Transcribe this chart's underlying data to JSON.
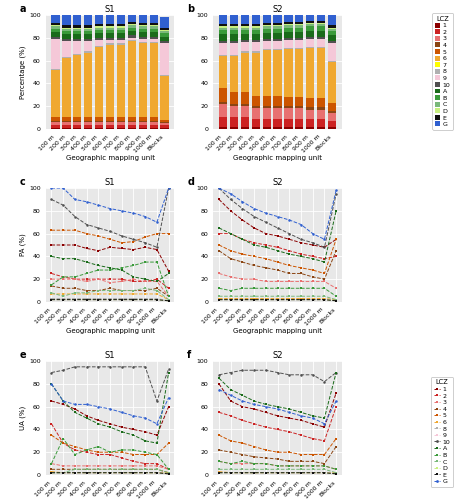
{
  "x_labels": [
    "100 m",
    "200 m",
    "300 m",
    "400 m",
    "500 m",
    "600 m",
    "700 m",
    "800 m",
    "900 m",
    "1000 m",
    "Blocks"
  ],
  "class_colors": {
    "1": "#8b0000",
    "2": "#cc2222",
    "3": "#e87070",
    "4": "#8b4513",
    "5": "#cc5500",
    "6": "#f0a830",
    "7": "#ffff00",
    "8": "#b0b0b0",
    "9": "#f5c8d8",
    "10": "#505050",
    "A": "#1a6b1a",
    "B": "#3a9a3a",
    "C": "#7ab87a",
    "D": "#c8f080",
    "E": "#101010",
    "G": "#3060d0"
  },
  "s1_bar": {
    "1": [
      1,
      1,
      1,
      1,
      1,
      1,
      1,
      1,
      1,
      1,
      1
    ],
    "2": [
      2,
      2,
      2,
      2,
      2,
      2,
      2,
      2,
      2,
      2,
      2
    ],
    "3": [
      3,
      3,
      3,
      3,
      3,
      3,
      3,
      3,
      3,
      3,
      2
    ],
    "4": [
      1,
      1,
      1,
      1,
      1,
      1,
      1,
      1,
      1,
      1,
      1
    ],
    "5": [
      3,
      3,
      3,
      3,
      3,
      3,
      3,
      3,
      3,
      3,
      2
    ],
    "6": [
      42,
      52,
      55,
      57,
      62,
      64,
      64,
      67,
      65,
      65,
      38
    ],
    "7": [
      0,
      0,
      0,
      0,
      0,
      0,
      0,
      0,
      0,
      0,
      0
    ],
    "8": [
      1,
      1,
      1,
      1,
      1,
      1,
      1,
      1,
      1,
      1,
      1
    ],
    "9": [
      26,
      14,
      11,
      9,
      5,
      3,
      3,
      2,
      3,
      3,
      28
    ],
    "10": [
      2,
      2,
      2,
      2,
      2,
      2,
      2,
      2,
      2,
      2,
      2
    ],
    "A": [
      4,
      4,
      4,
      4,
      4,
      4,
      4,
      4,
      4,
      4,
      4
    ],
    "B": [
      3,
      3,
      3,
      3,
      3,
      3,
      3,
      3,
      3,
      3,
      3
    ],
    "C": [
      2,
      2,
      2,
      2,
      2,
      2,
      2,
      2,
      2,
      2,
      2
    ],
    "D": [
      1,
      1,
      1,
      1,
      1,
      1,
      1,
      1,
      1,
      1,
      1
    ],
    "E": [
      2,
      2,
      2,
      2,
      2,
      2,
      2,
      2,
      2,
      2,
      2
    ],
    "G": [
      7,
      9,
      9,
      9,
      8,
      8,
      8,
      7,
      8,
      8,
      9
    ]
  },
  "s2_bar": {
    "1": [
      2,
      2,
      2,
      2,
      2,
      2,
      2,
      2,
      2,
      2,
      2
    ],
    "2": [
      8,
      8,
      8,
      7,
      7,
      7,
      7,
      7,
      7,
      7,
      5
    ],
    "3": [
      12,
      10,
      10,
      9,
      9,
      9,
      9,
      9,
      8,
      8,
      7
    ],
    "4": [
      2,
      2,
      2,
      2,
      2,
      2,
      2,
      2,
      2,
      2,
      2
    ],
    "5": [
      12,
      10,
      10,
      9,
      9,
      9,
      8,
      8,
      8,
      8,
      7
    ],
    "6": [
      28,
      32,
      35,
      38,
      40,
      40,
      42,
      42,
      44,
      44,
      36
    ],
    "7": [
      0,
      0,
      0,
      0,
      0,
      0,
      0,
      0,
      0,
      0,
      0
    ],
    "8": [
      1,
      1,
      1,
      1,
      1,
      1,
      1,
      1,
      1,
      1,
      1
    ],
    "9": [
      10,
      10,
      8,
      8,
      7,
      7,
      7,
      7,
      7,
      7,
      15
    ],
    "10": [
      2,
      2,
      2,
      2,
      2,
      2,
      2,
      2,
      2,
      2,
      2
    ],
    "A": [
      6,
      6,
      5,
      5,
      5,
      5,
      5,
      5,
      5,
      5,
      5
    ],
    "B": [
      4,
      4,
      4,
      4,
      4,
      4,
      4,
      4,
      4,
      4,
      4
    ],
    "C": [
      2,
      2,
      2,
      2,
      2,
      2,
      2,
      2,
      2,
      2,
      2
    ],
    "D": [
      1,
      1,
      1,
      1,
      1,
      1,
      1,
      1,
      1,
      1,
      1
    ],
    "E": [
      2,
      2,
      2,
      2,
      2,
      2,
      2,
      2,
      2,
      2,
      2
    ],
    "G": [
      8,
      8,
      8,
      8,
      7,
      7,
      7,
      7,
      7,
      7,
      9
    ]
  },
  "s1_pa": {
    "1": [
      50,
      50,
      50,
      47,
      45,
      48,
      47,
      46,
      48,
      46,
      27
    ],
    "2": [
      25,
      22,
      20,
      20,
      20,
      20,
      20,
      18,
      18,
      20,
      12
    ],
    "3": [
      20,
      20,
      20,
      18,
      20,
      17,
      18,
      20,
      18,
      18,
      5
    ],
    "4": [
      14,
      12,
      12,
      10,
      10,
      12,
      10,
      10,
      10,
      12,
      5
    ],
    "5": [
      63,
      63,
      63,
      60,
      58,
      55,
      52,
      53,
      57,
      60,
      60
    ],
    "6": [
      7,
      7,
      7,
      7,
      7,
      7,
      7,
      7,
      7,
      7,
      2
    ],
    "8": [
      3,
      3,
      3,
      3,
      3,
      3,
      3,
      3,
      3,
      3,
      1
    ],
    "9": [
      2,
      2,
      2,
      2,
      2,
      2,
      2,
      2,
      2,
      2,
      1
    ],
    "10": [
      90,
      85,
      75,
      68,
      65,
      62,
      58,
      55,
      52,
      48,
      100
    ],
    "A": [
      40,
      38,
      38,
      35,
      32,
      30,
      28,
      22,
      20,
      18,
      25
    ],
    "B": [
      15,
      22,
      22,
      25,
      28,
      28,
      30,
      32,
      35,
      35,
      5
    ],
    "C": [
      8,
      5,
      8,
      8,
      10,
      10,
      10,
      10,
      12,
      10,
      2
    ],
    "D": [
      2,
      2,
      2,
      2,
      2,
      2,
      2,
      2,
      2,
      2,
      1
    ],
    "E": [
      2,
      2,
      2,
      2,
      2,
      2,
      2,
      2,
      2,
      2,
      1
    ],
    "G": [
      100,
      100,
      90,
      88,
      85,
      82,
      80,
      78,
      75,
      70,
      100
    ]
  },
  "s2_pa": {
    "1": [
      90,
      80,
      72,
      65,
      60,
      58,
      55,
      52,
      50,
      48,
      55
    ],
    "2": [
      60,
      60,
      55,
      52,
      50,
      48,
      45,
      42,
      40,
      38,
      40
    ],
    "3": [
      25,
      22,
      20,
      20,
      18,
      18,
      18,
      18,
      18,
      18,
      12
    ],
    "4": [
      45,
      38,
      35,
      32,
      30,
      28,
      25,
      25,
      22,
      20,
      45
    ],
    "5": [
      50,
      45,
      42,
      40,
      38,
      35,
      32,
      30,
      28,
      25,
      55
    ],
    "6": [
      3,
      3,
      3,
      3,
      3,
      3,
      3,
      3,
      3,
      3,
      2
    ],
    "8": [
      2,
      2,
      2,
      2,
      2,
      2,
      2,
      2,
      2,
      2,
      1
    ],
    "9": [
      2,
      2,
      2,
      2,
      2,
      2,
      2,
      2,
      2,
      2,
      1
    ],
    "10": [
      100,
      90,
      82,
      75,
      70,
      65,
      60,
      55,
      52,
      48,
      95
    ],
    "A": [
      65,
      60,
      55,
      50,
      48,
      45,
      42,
      40,
      38,
      35,
      80
    ],
    "B": [
      12,
      10,
      12,
      12,
      12,
      12,
      12,
      12,
      12,
      12,
      5
    ],
    "C": [
      5,
      5,
      5,
      5,
      5,
      5,
      5,
      5,
      5,
      5,
      2
    ],
    "D": [
      2,
      2,
      2,
      2,
      2,
      2,
      2,
      2,
      2,
      2,
      1
    ],
    "E": [
      2,
      2,
      2,
      2,
      2,
      2,
      2,
      2,
      2,
      2,
      1
    ],
    "G": [
      100,
      95,
      88,
      82,
      78,
      75,
      72,
      68,
      60,
      55,
      98
    ]
  },
  "s1_ua": {
    "1": [
      65,
      62,
      58,
      52,
      48,
      45,
      42,
      40,
      38,
      35,
      60
    ],
    "2": [
      45,
      28,
      22,
      20,
      18,
      18,
      15,
      12,
      10,
      10,
      5
    ],
    "3": [
      10,
      8,
      8,
      8,
      8,
      8,
      8,
      8,
      8,
      8,
      5
    ],
    "4": [
      5,
      5,
      5,
      5,
      5,
      5,
      5,
      5,
      5,
      5,
      2
    ],
    "5": [
      35,
      28,
      25,
      22,
      20,
      20,
      20,
      18,
      18,
      18,
      28
    ],
    "6": [
      3,
      2,
      2,
      2,
      2,
      2,
      2,
      2,
      2,
      2,
      2
    ],
    "8": [
      2,
      2,
      2,
      2,
      2,
      2,
      2,
      2,
      2,
      2,
      1
    ],
    "9": [
      2,
      2,
      2,
      2,
      2,
      2,
      2,
      2,
      2,
      2,
      1
    ],
    "10": [
      90,
      92,
      95,
      95,
      95,
      95,
      95,
      95,
      95,
      65,
      93
    ],
    "A": [
      80,
      65,
      55,
      50,
      45,
      42,
      38,
      35,
      30,
      28,
      90
    ],
    "B": [
      10,
      32,
      18,
      22,
      25,
      20,
      22,
      22,
      20,
      18,
      5
    ],
    "C": [
      2,
      2,
      5,
      5,
      5,
      5,
      5,
      5,
      5,
      5,
      2
    ],
    "D": [
      2,
      2,
      2,
      2,
      2,
      2,
      2,
      2,
      2,
      2,
      1
    ],
    "E": [
      2,
      2,
      2,
      2,
      2,
      2,
      2,
      2,
      2,
      2,
      1
    ],
    "G": [
      80,
      65,
      62,
      62,
      60,
      58,
      55,
      52,
      50,
      45,
      68
    ]
  },
  "s2_ua": {
    "1": [
      80,
      65,
      60,
      58,
      55,
      52,
      50,
      48,
      45,
      42,
      72
    ],
    "2": [
      55,
      52,
      48,
      45,
      42,
      40,
      38,
      35,
      32,
      30,
      60
    ],
    "3": [
      12,
      10,
      10,
      10,
      10,
      8,
      8,
      8,
      8,
      8,
      5
    ],
    "4": [
      22,
      20,
      18,
      16,
      15,
      14,
      12,
      12,
      12,
      10,
      25
    ],
    "5": [
      35,
      30,
      28,
      25,
      22,
      20,
      20,
      18,
      18,
      18,
      32
    ],
    "6": [
      3,
      2,
      2,
      2,
      2,
      2,
      2,
      2,
      2,
      2,
      2
    ],
    "8": [
      2,
      2,
      2,
      2,
      2,
      2,
      2,
      2,
      2,
      2,
      1
    ],
    "9": [
      2,
      2,
      2,
      2,
      2,
      2,
      2,
      2,
      2,
      2,
      1
    ],
    "10": [
      88,
      90,
      92,
      92,
      92,
      90,
      88,
      88,
      88,
      82,
      90
    ],
    "A": [
      85,
      75,
      70,
      65,
      62,
      60,
      58,
      55,
      52,
      50,
      90
    ],
    "B": [
      12,
      10,
      12,
      10,
      10,
      8,
      8,
      8,
      8,
      8,
      5
    ],
    "C": [
      5,
      5,
      5,
      5,
      5,
      5,
      5,
      5,
      5,
      5,
      2
    ],
    "D": [
      2,
      2,
      2,
      2,
      2,
      2,
      2,
      2,
      2,
      2,
      1
    ],
    "E": [
      2,
      2,
      2,
      2,
      2,
      2,
      2,
      2,
      2,
      2,
      1
    ],
    "G": [
      75,
      70,
      65,
      62,
      60,
      58,
      55,
      52,
      50,
      45,
      65
    ]
  },
  "bar_order": [
    "1",
    "2",
    "3",
    "4",
    "5",
    "6",
    "7",
    "8",
    "9",
    "10",
    "A",
    "B",
    "C",
    "D",
    "E",
    "G"
  ],
  "line_classes": [
    "1",
    "2",
    "3",
    "4",
    "5",
    "6",
    "8",
    "9",
    "10",
    "A",
    "B",
    "C",
    "D",
    "E",
    "G"
  ],
  "legend_bar_classes": [
    "1",
    "2",
    "3",
    "4",
    "5",
    "6",
    "7",
    "8",
    "9",
    "10",
    "A",
    "B",
    "C",
    "D",
    "E",
    "G"
  ],
  "legend_line_classes": [
    "1",
    "2",
    "3",
    "4",
    "5",
    "6",
    "8",
    "9",
    "10",
    "A",
    "B",
    "C",
    "D",
    "E",
    "G"
  ],
  "bg_color": "#e8e8e8",
  "fs_title": 6,
  "fs_tick": 4.5,
  "fs_label": 5,
  "fs_legend": 4.5
}
